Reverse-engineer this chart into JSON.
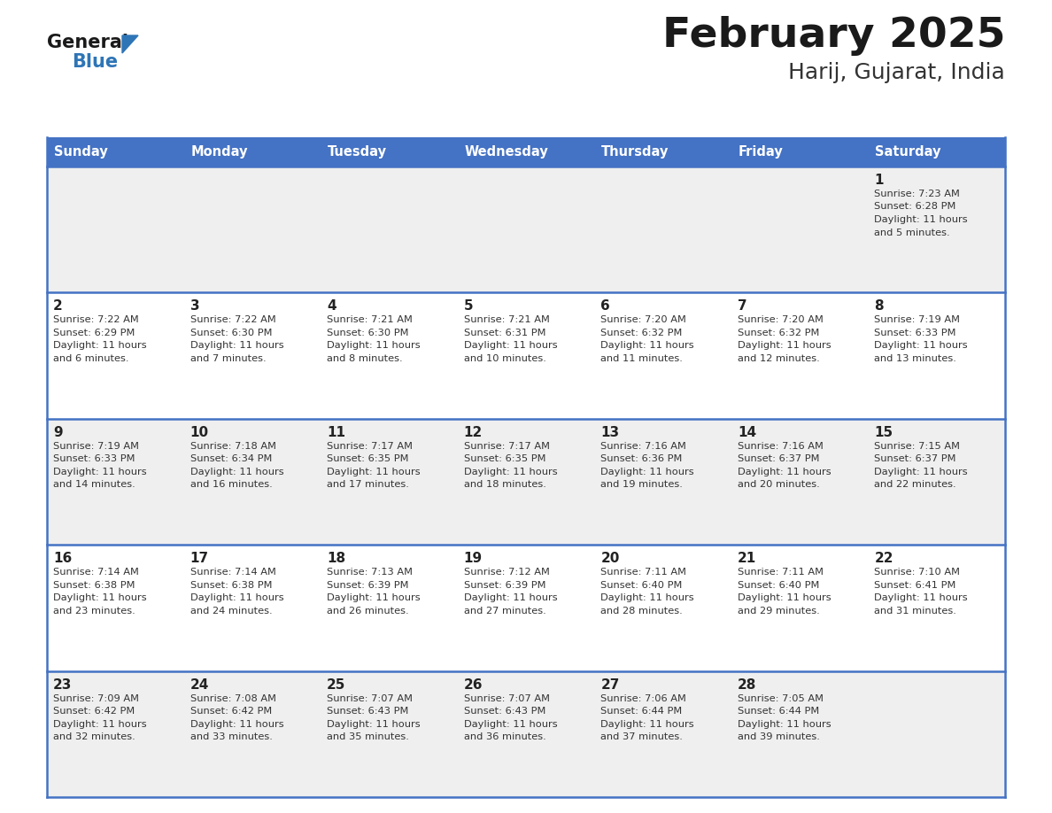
{
  "title": "February 2025",
  "subtitle": "Harij, Gujarat, India",
  "header_bg_color": "#4472C4",
  "header_text_color": "#FFFFFF",
  "day_names": [
    "Sunday",
    "Monday",
    "Tuesday",
    "Wednesday",
    "Thursday",
    "Friday",
    "Saturday"
  ],
  "title_color": "#1a1a1a",
  "subtitle_color": "#333333",
  "cell_bg_light": "#EFEFEF",
  "cell_bg_white": "#FFFFFF",
  "cell_border_color": "#4472C4",
  "day_num_color": "#222222",
  "info_text_color": "#333333",
  "logo_general_color": "#1a1a1a",
  "logo_blue_color": "#2E75B6",
  "logo_triangle_color": "#2E75B6",
  "calendar_data": [
    [
      null,
      null,
      null,
      null,
      null,
      null,
      {
        "day": "1",
        "sunrise": "7:23 AM",
        "sunset": "6:28 PM",
        "daylight_hours": "11 hours",
        "daylight_minutes": "and 5 minutes."
      }
    ],
    [
      {
        "day": "2",
        "sunrise": "7:22 AM",
        "sunset": "6:29 PM",
        "daylight_hours": "11 hours",
        "daylight_minutes": "and 6 minutes."
      },
      {
        "day": "3",
        "sunrise": "7:22 AM",
        "sunset": "6:30 PM",
        "daylight_hours": "11 hours",
        "daylight_minutes": "and 7 minutes."
      },
      {
        "day": "4",
        "sunrise": "7:21 AM",
        "sunset": "6:30 PM",
        "daylight_hours": "11 hours",
        "daylight_minutes": "and 8 minutes."
      },
      {
        "day": "5",
        "sunrise": "7:21 AM",
        "sunset": "6:31 PM",
        "daylight_hours": "11 hours",
        "daylight_minutes": "and 10 minutes."
      },
      {
        "day": "6",
        "sunrise": "7:20 AM",
        "sunset": "6:32 PM",
        "daylight_hours": "11 hours",
        "daylight_minutes": "and 11 minutes."
      },
      {
        "day": "7",
        "sunrise": "7:20 AM",
        "sunset": "6:32 PM",
        "daylight_hours": "11 hours",
        "daylight_minutes": "and 12 minutes."
      },
      {
        "day": "8",
        "sunrise": "7:19 AM",
        "sunset": "6:33 PM",
        "daylight_hours": "11 hours",
        "daylight_minutes": "and 13 minutes."
      }
    ],
    [
      {
        "day": "9",
        "sunrise": "7:19 AM",
        "sunset": "6:33 PM",
        "daylight_hours": "11 hours",
        "daylight_minutes": "and 14 minutes."
      },
      {
        "day": "10",
        "sunrise": "7:18 AM",
        "sunset": "6:34 PM",
        "daylight_hours": "11 hours",
        "daylight_minutes": "and 16 minutes."
      },
      {
        "day": "11",
        "sunrise": "7:17 AM",
        "sunset": "6:35 PM",
        "daylight_hours": "11 hours",
        "daylight_minutes": "and 17 minutes."
      },
      {
        "day": "12",
        "sunrise": "7:17 AM",
        "sunset": "6:35 PM",
        "daylight_hours": "11 hours",
        "daylight_minutes": "and 18 minutes."
      },
      {
        "day": "13",
        "sunrise": "7:16 AM",
        "sunset": "6:36 PM",
        "daylight_hours": "11 hours",
        "daylight_minutes": "and 19 minutes."
      },
      {
        "day": "14",
        "sunrise": "7:16 AM",
        "sunset": "6:37 PM",
        "daylight_hours": "11 hours",
        "daylight_minutes": "and 20 minutes."
      },
      {
        "day": "15",
        "sunrise": "7:15 AM",
        "sunset": "6:37 PM",
        "daylight_hours": "11 hours",
        "daylight_minutes": "and 22 minutes."
      }
    ],
    [
      {
        "day": "16",
        "sunrise": "7:14 AM",
        "sunset": "6:38 PM",
        "daylight_hours": "11 hours",
        "daylight_minutes": "and 23 minutes."
      },
      {
        "day": "17",
        "sunrise": "7:14 AM",
        "sunset": "6:38 PM",
        "daylight_hours": "11 hours",
        "daylight_minutes": "and 24 minutes."
      },
      {
        "day": "18",
        "sunrise": "7:13 AM",
        "sunset": "6:39 PM",
        "daylight_hours": "11 hours",
        "daylight_minutes": "and 26 minutes."
      },
      {
        "day": "19",
        "sunrise": "7:12 AM",
        "sunset": "6:39 PM",
        "daylight_hours": "11 hours",
        "daylight_minutes": "and 27 minutes."
      },
      {
        "day": "20",
        "sunrise": "7:11 AM",
        "sunset": "6:40 PM",
        "daylight_hours": "11 hours",
        "daylight_minutes": "and 28 minutes."
      },
      {
        "day": "21",
        "sunrise": "7:11 AM",
        "sunset": "6:40 PM",
        "daylight_hours": "11 hours",
        "daylight_minutes": "and 29 minutes."
      },
      {
        "day": "22",
        "sunrise": "7:10 AM",
        "sunset": "6:41 PM",
        "daylight_hours": "11 hours",
        "daylight_minutes": "and 31 minutes."
      }
    ],
    [
      {
        "day": "23",
        "sunrise": "7:09 AM",
        "sunset": "6:42 PM",
        "daylight_hours": "11 hours",
        "daylight_minutes": "and 32 minutes."
      },
      {
        "day": "24",
        "sunrise": "7:08 AM",
        "sunset": "6:42 PM",
        "daylight_hours": "11 hours",
        "daylight_minutes": "and 33 minutes."
      },
      {
        "day": "25",
        "sunrise": "7:07 AM",
        "sunset": "6:43 PM",
        "daylight_hours": "11 hours",
        "daylight_minutes": "and 35 minutes."
      },
      {
        "day": "26",
        "sunrise": "7:07 AM",
        "sunset": "6:43 PM",
        "daylight_hours": "11 hours",
        "daylight_minutes": "and 36 minutes."
      },
      {
        "day": "27",
        "sunrise": "7:06 AM",
        "sunset": "6:44 PM",
        "daylight_hours": "11 hours",
        "daylight_minutes": "and 37 minutes."
      },
      {
        "day": "28",
        "sunrise": "7:05 AM",
        "sunset": "6:44 PM",
        "daylight_hours": "11 hours",
        "daylight_minutes": "and 39 minutes."
      },
      null
    ]
  ],
  "fig_width": 11.88,
  "fig_height": 9.18,
  "dpi": 100
}
